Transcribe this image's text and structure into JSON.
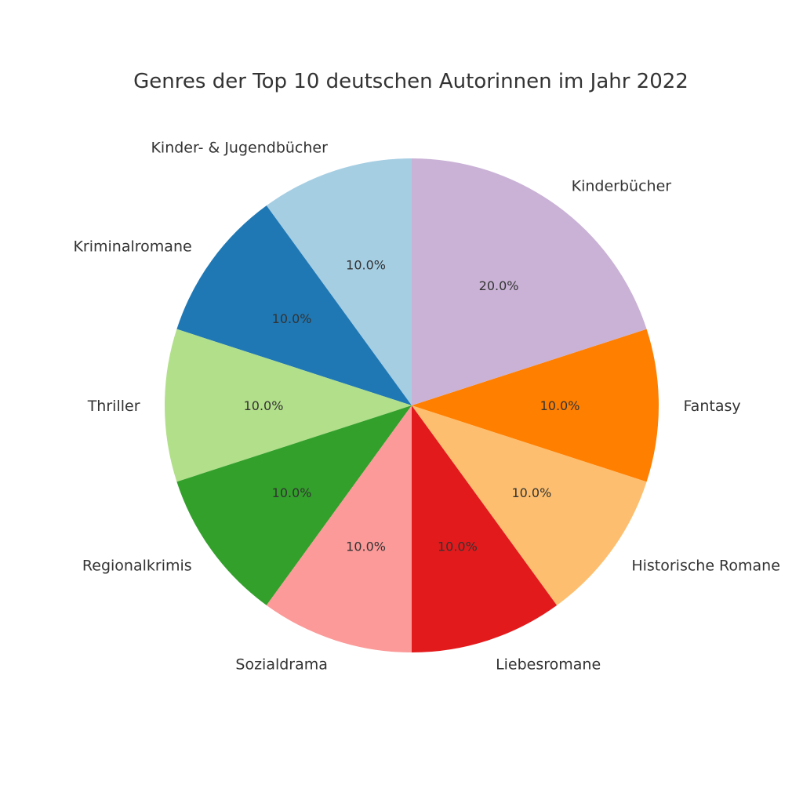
{
  "chart_data": {
    "type": "pie",
    "title": "Genres der Top 10 deutschen Autorinnen im Jahr 2022",
    "start_angle": 90,
    "counterclock": true,
    "slices": [
      {
        "label": "Kinder- & Jugendbücher",
        "value": 10.0,
        "pct": "10.0%",
        "color": "#a6cee3"
      },
      {
        "label": "Kriminalromane",
        "value": 10.0,
        "pct": "10.0%",
        "color": "#1f78b4"
      },
      {
        "label": "Thriller",
        "value": 10.0,
        "pct": "10.0%",
        "color": "#b2df8a"
      },
      {
        "label": "Regionalkrimis",
        "value": 10.0,
        "pct": "10.0%",
        "color": "#33a02c"
      },
      {
        "label": "Sozialdrama",
        "value": 10.0,
        "pct": "10.0%",
        "color": "#fb9a99"
      },
      {
        "label": "Liebesromane",
        "value": 10.0,
        "pct": "10.0%",
        "color": "#e31a1c"
      },
      {
        "label": "Historische Romane",
        "value": 10.0,
        "pct": "10.0%",
        "color": "#fdbf6f"
      },
      {
        "label": "Fantasy",
        "value": 10.0,
        "pct": "10.0%",
        "color": "#ff7f00"
      },
      {
        "label": "Kinderbücher",
        "value": 20.0,
        "pct": "20.0%",
        "color": "#cab2d6"
      }
    ]
  }
}
